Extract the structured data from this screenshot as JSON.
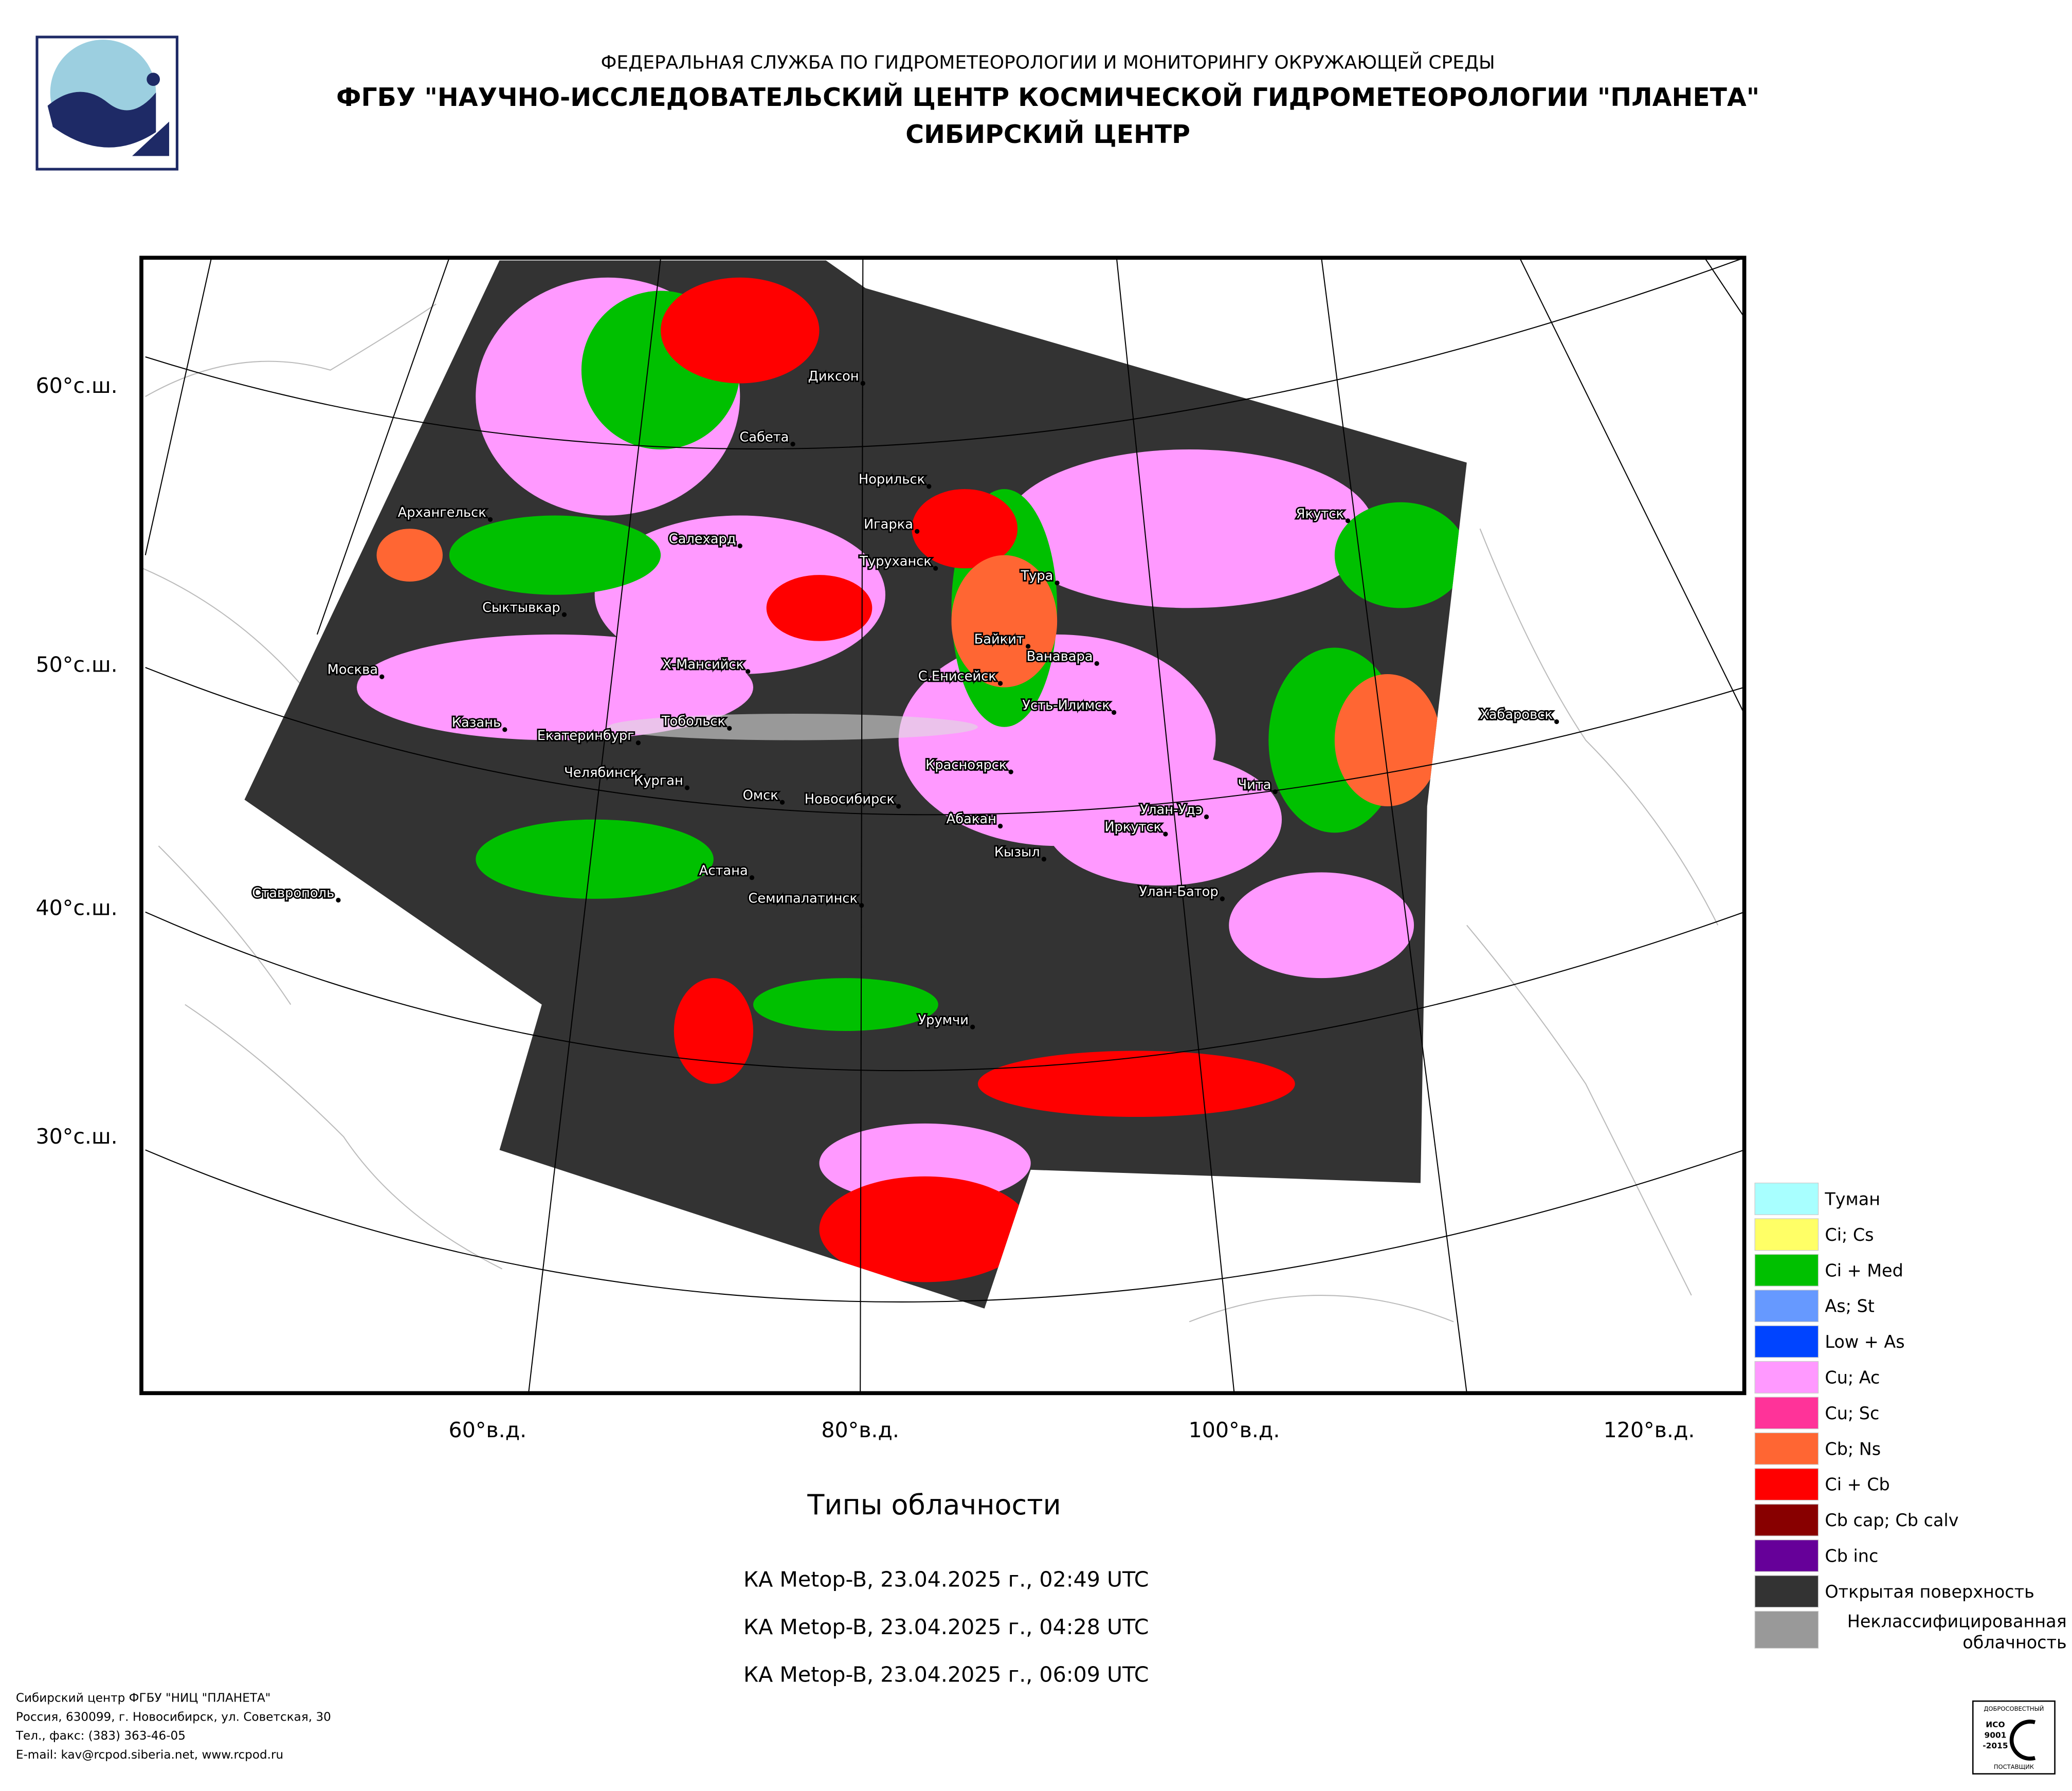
{
  "header": {
    "agency": "ФЕДЕРАЛЬНАЯ СЛУЖБА ПО ГИДРОМЕТЕОРОЛОГИИ И МОНИТОРИНГУ ОКРУЖАЮЩЕЙ СРЕДЫ",
    "org": "ФГБУ \"НАУЧНО-ИССЛЕДОВАТЕЛЬСКИЙ ЦЕНТР КОСМИЧЕСКОЙ ГИДРОМЕТЕОРОЛОГИИ \"ПЛАНЕТА\"",
    "center": "СИБИРСКИЙ ЦЕНТР"
  },
  "map": {
    "lat_labels": [
      "60°с.ш.",
      "50°с.ш.",
      "40°с.ш.",
      "30°с.ш."
    ],
    "lon_labels": [
      "60°в.д.",
      "80°в.д.",
      "100°в.д.",
      "120°в.д."
    ],
    "cities": [
      "Диксон",
      "Сабета",
      "Норильск",
      "Архангельск",
      "Салехард",
      "Игарка",
      "Якутск",
      "Туруханск",
      "Тура",
      "Сыктывкар",
      "Байкит",
      "Ванавара",
      "Москва",
      "Х-Мансийск",
      "С.Енисейск",
      "Усть-Илимск",
      "Хабаровск",
      "Казань",
      "Тобольск",
      "Екатеринбург",
      "Челябинск",
      "Курган",
      "Красноярск",
      "Чита",
      "Омск",
      "Новосибирск",
      "Улан-Удэ",
      "Абакан",
      "Иркутск",
      "Кызыл",
      "Астана",
      "Ставрополь",
      "Семипалатинск",
      "Улан-Батор",
      "Урумчи"
    ]
  },
  "legend": {
    "items": [
      {
        "label": "Туман",
        "color": "#a8ffff"
      },
      {
        "label": "Ci; Cs",
        "color": "#ffff66"
      },
      {
        "label": "Ci + Med",
        "color": "#00c000"
      },
      {
        "label": "As; St",
        "color": "#6699ff"
      },
      {
        "label": "Low + As",
        "color": "#0044ff"
      },
      {
        "label": "Cu; Ac",
        "color": "#ff99ff"
      },
      {
        "label": "Cu; Sc",
        "color": "#ff3399"
      },
      {
        "label": "Cb; Ns",
        "color": "#ff6633"
      },
      {
        "label": "Ci + Cb",
        "color": "#ff0000"
      },
      {
        "label": "Cb cap; Cb calv",
        "color": "#880000"
      },
      {
        "label": "Cb inc",
        "color": "#660099"
      },
      {
        "label": "Открытая поверхность",
        "color": "#333333"
      },
      {
        "label": "Неклассифицированная облачность",
        "color": "#999999"
      }
    ]
  },
  "caption": {
    "title": "Типы облачности",
    "passes": [
      "КА Metop-B, 23.04.2025 г., 02:49 UTC",
      "КА Metop-B, 23.04.2025 г., 04:28 UTC",
      "КА Metop-B, 23.04.2025 г., 06:09 UTC"
    ]
  },
  "footer": {
    "lines": [
      "Сибирский центр ФГБУ \"НИЦ \"ПЛАНЕТА\"",
      "Россия, 630099, г. Новосибирск, ул. Советская, 30",
      "Тел., факс: (383) 363-46-05",
      "E-mail: kav@rcpod.siberia.net, www.rcpod.ru"
    ]
  },
  "cert": {
    "top": "ДОБРОСОВЕСТНЫЙ",
    "mid1": "ИСО",
    "mid2": "9001",
    "mid3": "-2015",
    "bottom": "ПОСТАВЩИК"
  }
}
